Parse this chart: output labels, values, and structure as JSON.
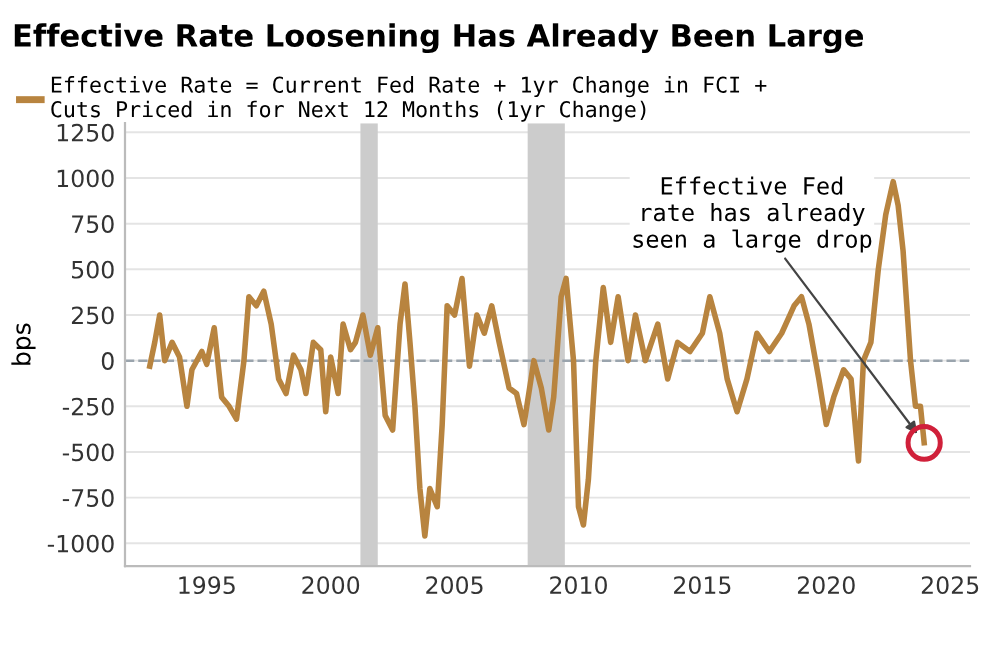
{
  "chart_data": {
    "type": "line",
    "title": "Effective Rate Loosening Has Already Been Large",
    "ylabel": "bps",
    "series": [
      {
        "name": "Effective Rate = Current Fed Rate + 1yr Change in FCI +\nCuts Priced in for Next 12 Months (1yr Change)",
        "color": "#b8843f",
        "x": [
          1992.7,
          1992.9,
          1993.1,
          1993.3,
          1993.6,
          1993.9,
          1994.2,
          1994.4,
          1994.8,
          1995.0,
          1995.3,
          1995.6,
          1995.9,
          1996.2,
          1996.5,
          1996.7,
          1997.0,
          1997.3,
          1997.6,
          1997.9,
          1998.2,
          1998.5,
          1998.8,
          1999.0,
          1999.3,
          1999.6,
          1999.8,
          2000.0,
          2000.3,
          2000.5,
          2000.8,
          2001.0,
          2001.3,
          2001.6,
          2001.9,
          2002.2,
          2002.5,
          2002.8,
          2003.0,
          2003.2,
          2003.4,
          2003.6,
          2003.8,
          2004.0,
          2004.3,
          2004.5,
          2004.7,
          2005.0,
          2005.3,
          2005.6,
          2005.9,
          2006.2,
          2006.5,
          2006.8,
          2007.2,
          2007.5,
          2007.8,
          2008.2,
          2008.5,
          2008.8,
          2009.0,
          2009.3,
          2009.5,
          2009.8,
          2010.0,
          2010.2,
          2010.4,
          2010.7,
          2011.0,
          2011.3,
          2011.6,
          2012.0,
          2012.3,
          2012.7,
          2013.2,
          2013.6,
          2014.0,
          2014.5,
          2015.0,
          2015.3,
          2015.7,
          2016.0,
          2016.4,
          2016.8,
          2017.2,
          2017.7,
          2018.2,
          2018.7,
          2019.0,
          2019.3,
          2019.7,
          2020.0,
          2020.3,
          2020.7,
          2021.0,
          2021.3,
          2021.5,
          2021.8,
          2022.1,
          2022.4,
          2022.7,
          2022.9,
          2023.1,
          2023.4,
          2023.6,
          2023.8,
          2023.95
        ],
        "values": [
          -30,
          100,
          250,
          0,
          100,
          20,
          -250,
          -50,
          50,
          -20,
          180,
          -200,
          -250,
          -320,
          0,
          350,
          300,
          380,
          200,
          -100,
          -180,
          30,
          -50,
          -180,
          100,
          60,
          -280,
          20,
          -180,
          200,
          60,
          100,
          250,
          30,
          180,
          -300,
          -380,
          200,
          420,
          100,
          -250,
          -700,
          -960,
          -700,
          -800,
          -350,
          300,
          250,
          450,
          -30,
          250,
          150,
          300,
          100,
          -150,
          -180,
          -350,
          0,
          -150,
          -380,
          -200,
          350,
          450,
          0,
          -800,
          -900,
          -650,
          0,
          400,
          100,
          350,
          0,
          250,
          0,
          200,
          -100,
          100,
          50,
          150,
          350,
          150,
          -100,
          -280,
          -100,
          150,
          50,
          150,
          300,
          350,
          200,
          -100,
          -350,
          -200,
          -50,
          -100,
          -550,
          0,
          100,
          500,
          800,
          980,
          850,
          600,
          0,
          -250,
          -250,
          -450
        ]
      }
    ],
    "xlim": [
      1991.7,
      2025.8
    ],
    "xticks": [
      1995,
      2000,
      2005,
      2010,
      2015,
      2020,
      2025
    ],
    "ylim": [
      -1125,
      1300
    ],
    "yticks": [
      -1000,
      -750,
      -500,
      -250,
      0,
      250,
      500,
      750,
      1000,
      1250
    ],
    "grid": "y",
    "legend": "top left",
    "ref_lines": [
      {
        "axis": "y",
        "value": 0,
        "color": "#9aa4ad",
        "line_style": "dashed"
      }
    ],
    "bands": [
      {
        "axis": "x",
        "from": 2001.2,
        "to": 2001.9,
        "color": "#cccccc"
      },
      {
        "axis": "x",
        "from": 2007.95,
        "to": 2009.45,
        "color": "#cccccc"
      }
    ],
    "annotations": [
      {
        "text": "Effective Fed\nrate has already\nseen a large drop",
        "x": 2023.95,
        "y": -450
      }
    ]
  }
}
